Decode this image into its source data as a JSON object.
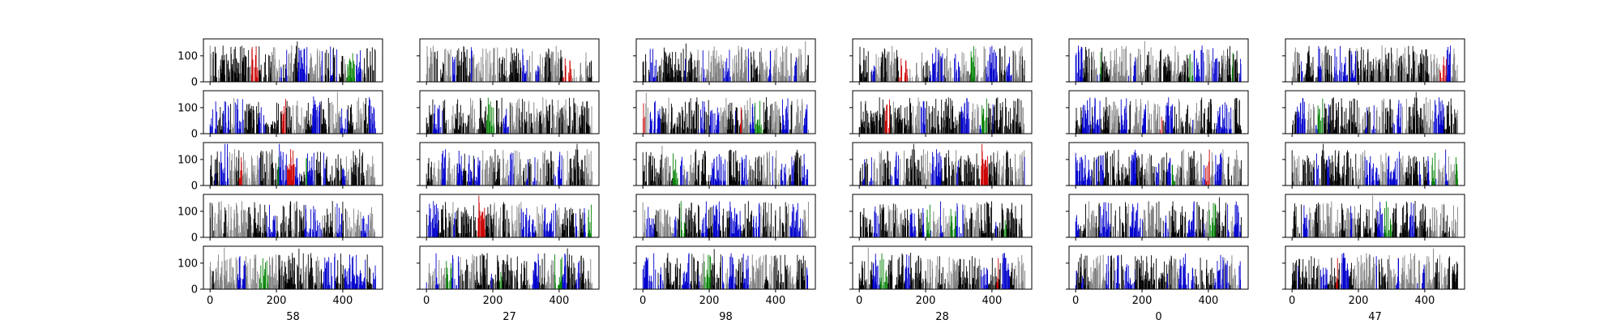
{
  "chart_data": {
    "type": "bar",
    "layout": "small-multiples grid, 5 rows x 6 columns, shared x and y axes",
    "column_labels": [
      "58",
      "27",
      "98",
      "28",
      "0",
      "47"
    ],
    "x_ticks": [
      "0",
      "200",
      "400"
    ],
    "x_tick_values": [
      0,
      200,
      400
    ],
    "y_ticks": [
      "0",
      "100"
    ],
    "y_tick_values": [
      0,
      100
    ],
    "xlim": [
      -20,
      520
    ],
    "ylim": [
      0,
      165
    ],
    "bars_per_panel": 500,
    "typical_height_range": [
      15,
      140
    ],
    "bar_colors": [
      "#000000",
      "#808080",
      "#0000cc",
      "#008000",
      "#cc0000"
    ],
    "background": "#ffffff",
    "grid": false
  }
}
